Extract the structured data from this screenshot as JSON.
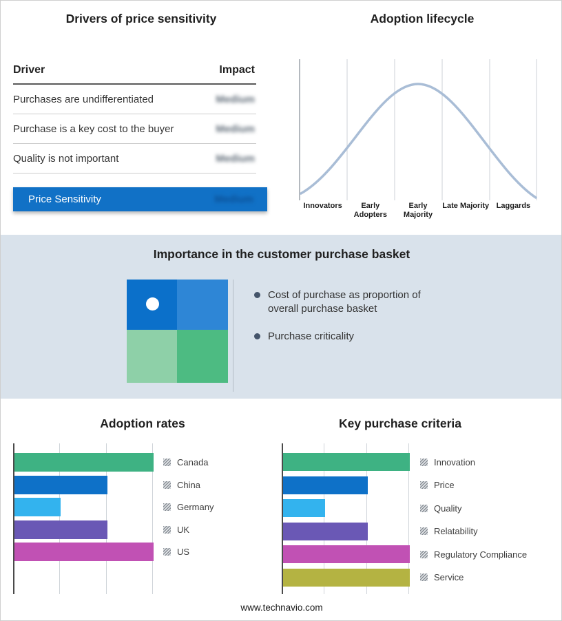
{
  "colors": {
    "accent_blue": "#1171c6",
    "section_bg": "#d9e2eb",
    "curve": "#a9bdd6",
    "quadrant": [
      "#0b70ca",
      "#2e86d6",
      "#8ed0a8",
      "#4dbb82"
    ]
  },
  "drivers": {
    "title": "Drivers of price sensitivity",
    "columns": {
      "driver": "Driver",
      "impact": "Impact"
    },
    "rows": [
      {
        "driver": "Purchases are undifferentiated",
        "impact": "Medium"
      },
      {
        "driver": "Purchase is a key cost to the buyer",
        "impact": "Medium"
      },
      {
        "driver": "Quality is not important",
        "impact": "Medium"
      }
    ],
    "summary": {
      "label": "Price Sensitivity",
      "impact": "Medium"
    }
  },
  "lifecycle": {
    "title": "Adoption lifecycle",
    "stages": [
      "Innovators",
      "Early Adopters",
      "Early Majority",
      "Late Majority",
      "Laggards"
    ]
  },
  "basket": {
    "title": "Importance in the customer purchase basket",
    "bullets": [
      "Cost of purchase as proportion of overall purchase basket",
      "Purchase criticality"
    ]
  },
  "footer": {
    "url": "www.technavio.com"
  },
  "chart_data": [
    {
      "type": "line",
      "title": "Adoption lifecycle",
      "x": [
        "Innovators",
        "Early Adopters",
        "Early Majority",
        "Late Majority",
        "Laggards"
      ],
      "description": "Bell-shaped adoption curve rising from Innovators, peaking at Early Majority, falling to Laggards",
      "color": "#a9bdd6",
      "grid": true,
      "legend_position": "none"
    },
    {
      "type": "bar",
      "orientation": "horizontal",
      "title": "Adoption rates",
      "categories": [
        "Canada",
        "China",
        "Germany",
        "UK",
        "US"
      ],
      "values": [
        3,
        2,
        1,
        2,
        3
      ],
      "xlim": [
        0,
        3
      ],
      "colors": [
        "#3eb283",
        "#0e71c8",
        "#33b3ee",
        "#6a58b5",
        "#c151b4"
      ],
      "grid": true,
      "legend_position": "right"
    },
    {
      "type": "bar",
      "orientation": "horizontal",
      "title": "Key purchase criteria",
      "categories": [
        "Innovation",
        "Price",
        "Quality",
        "Relatability",
        "Regulatory Compliance",
        "Service"
      ],
      "values": [
        3,
        2,
        1,
        2,
        3,
        3
      ],
      "xlim": [
        0,
        3
      ],
      "colors": [
        "#3eb283",
        "#0e71c8",
        "#33b3ee",
        "#6a58b5",
        "#c151b4",
        "#b4b342"
      ],
      "grid": true,
      "legend_position": "right"
    }
  ]
}
